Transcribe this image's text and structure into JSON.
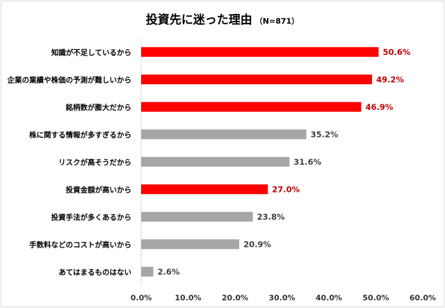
{
  "chart_data": {
    "type": "bar",
    "orientation": "horizontal",
    "title": "投資先に迷った理由",
    "subtitle": "（N=871）",
    "categories": [
      "知識が不足しているから",
      "企業の業績や株価の予測が難しいから",
      "銘柄数が膨大だから",
      "株に関する情報が多すぎるから",
      "リスクが高そうだから",
      "投資金額が高いから",
      "投資手法が多くあるから",
      "手数料などのコストが高いから",
      "あてはまるものはない"
    ],
    "values": [
      50.6,
      49.2,
      46.9,
      35.2,
      31.6,
      27.0,
      23.8,
      20.9,
      2.6
    ],
    "value_labels": [
      "50.6%",
      "49.2%",
      "46.9%",
      "35.2%",
      "31.6%",
      "27.0%",
      "23.8%",
      "20.9%",
      "2.6%"
    ],
    "highlighted": [
      true,
      true,
      true,
      false,
      false,
      true,
      false,
      false,
      false
    ],
    "xlim": [
      0,
      60
    ],
    "xticks": [
      "0.0%",
      "10.0%",
      "20.0%",
      "30.0%",
      "40.0%",
      "50.0%",
      "60.0%"
    ],
    "grid": false,
    "colors": {
      "highlight": "#ff0000",
      "normal": "#a6a6a6",
      "highlight_label": "#c00000",
      "normal_label": "#404040"
    }
  }
}
